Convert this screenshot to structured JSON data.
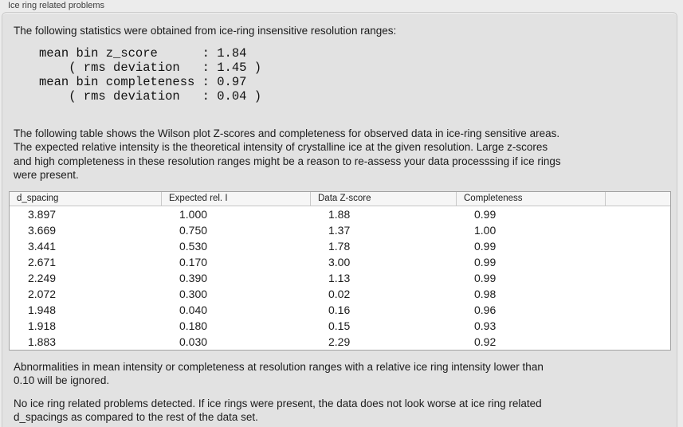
{
  "panel": {
    "title": "Ice ring related problems"
  },
  "summary": {
    "intro": "The following statistics were obtained from ice-ring insensitive resolution ranges:",
    "stats_lines": [
      "mean bin z_score      : 1.84",
      "    ( rms deviation   : 1.45 )",
      "mean bin completeness : 0.97",
      "    ( rms deviation   : 0.04 )"
    ]
  },
  "description_lines": [
    "The following table shows the Wilson plot Z-scores and completeness for observed data in ice-ring sensitive areas.",
    "The expected relative intensity is the theoretical intensity of crystalline ice at the given resolution. Large z-scores",
    "and high completeness in these resolution ranges might be a reason to re-assess your data processsing if ice rings",
    "were present."
  ],
  "table": {
    "columns": [
      "d_spacing",
      "Expected rel. I",
      "Data Z-score",
      "Completeness"
    ],
    "rows": [
      [
        "3.897",
        "1.000",
        "1.88",
        "0.99"
      ],
      [
        "3.669",
        "0.750",
        "1.37",
        "1.00"
      ],
      [
        "3.441",
        "0.530",
        "1.78",
        "0.99"
      ],
      [
        "2.671",
        "0.170",
        "3.00",
        "0.99"
      ],
      [
        "2.249",
        "0.390",
        "1.13",
        "0.99"
      ],
      [
        "2.072",
        "0.300",
        "0.02",
        "0.98"
      ],
      [
        "1.948",
        "0.040",
        "0.16",
        "0.96"
      ],
      [
        "1.918",
        "0.180",
        "0.15",
        "0.93"
      ],
      [
        "1.883",
        "0.030",
        "2.29",
        "0.92"
      ]
    ]
  },
  "notes": {
    "ignore_lines": [
      "Abnormalities in mean intensity or completeness at resolution ranges with a relative ice ring intensity lower than",
      "0.10 will be ignored."
    ],
    "result_lines": [
      "No ice ring related problems detected. If ice rings were present, the data does not look worse at ice ring related",
      "d_spacings as compared to the rest of the data set."
    ]
  },
  "colors": {
    "page_bg": "#ececec",
    "panel_bg": "#e2e2e2",
    "panel_border": "#cbcbcb",
    "table_bg": "#ffffff",
    "table_border": "#a2a2a2",
    "table_header_bg": "#f6f6f6",
    "text": "#1c1c1c"
  }
}
